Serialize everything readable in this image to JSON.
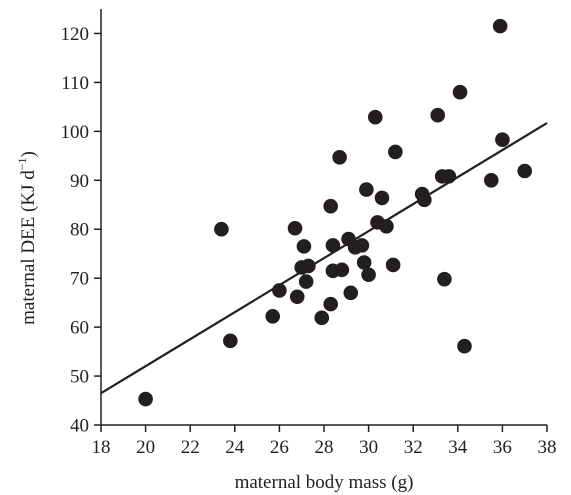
{
  "chart_data": {
    "type": "scatter",
    "title": "",
    "xlabel": "maternal body mass (g)",
    "ylabel_main": "maternal DEE (KJ d",
    "ylabel_sup": "−1",
    "ylabel_close": ")",
    "xlim": [
      18,
      38
    ],
    "ylim": [
      40,
      125
    ],
    "x_ticks": [
      "18",
      "20",
      "22",
      "24",
      "26",
      "28",
      "30",
      "32",
      "34",
      "36",
      "38"
    ],
    "y_ticks": [
      "40",
      "50",
      "60",
      "70",
      "80",
      "90",
      "100",
      "110",
      "120"
    ],
    "x_tick_values": [
      18,
      20,
      22,
      24,
      26,
      28,
      30,
      32,
      34,
      36,
      38
    ],
    "y_tick_values": [
      40,
      50,
      60,
      70,
      80,
      90,
      100,
      110,
      120
    ],
    "grid": false,
    "legend": "none",
    "point_color": "#231f20",
    "fit_line": {
      "x": [
        18,
        38
      ],
      "y": [
        46.5,
        101.7
      ]
    },
    "points": [
      [
        20.0,
        45.3
      ],
      [
        23.4,
        80.0
      ],
      [
        23.8,
        57.2
      ],
      [
        25.7,
        62.2
      ],
      [
        26.0,
        67.5
      ],
      [
        26.7,
        80.2
      ],
      [
        26.8,
        66.2
      ],
      [
        27.0,
        72.2
      ],
      [
        27.1,
        76.5
      ],
      [
        27.2,
        69.3
      ],
      [
        27.3,
        72.5
      ],
      [
        27.9,
        61.9
      ],
      [
        28.3,
        64.7
      ],
      [
        28.3,
        84.7
      ],
      [
        28.4,
        76.7
      ],
      [
        28.4,
        71.5
      ],
      [
        28.7,
        94.7
      ],
      [
        28.8,
        71.7
      ],
      [
        29.1,
        78.0
      ],
      [
        29.2,
        67.0
      ],
      [
        29.4,
        76.3
      ],
      [
        29.7,
        76.7
      ],
      [
        29.8,
        73.2
      ],
      [
        29.9,
        88.1
      ],
      [
        30.0,
        70.7
      ],
      [
        30.3,
        102.9
      ],
      [
        30.4,
        81.4
      ],
      [
        30.6,
        86.4
      ],
      [
        30.8,
        80.6
      ],
      [
        31.1,
        72.7
      ],
      [
        31.2,
        95.8
      ],
      [
        32.4,
        87.2
      ],
      [
        32.5,
        86.0
      ],
      [
        33.1,
        103.3
      ],
      [
        33.3,
        90.8
      ],
      [
        33.4,
        69.8
      ],
      [
        33.6,
        90.8
      ],
      [
        34.1,
        108.0
      ],
      [
        34.3,
        56.1
      ],
      [
        35.5,
        90.0
      ],
      [
        35.9,
        121.5
      ],
      [
        36.0,
        98.3
      ],
      [
        37.0,
        91.9
      ]
    ]
  }
}
